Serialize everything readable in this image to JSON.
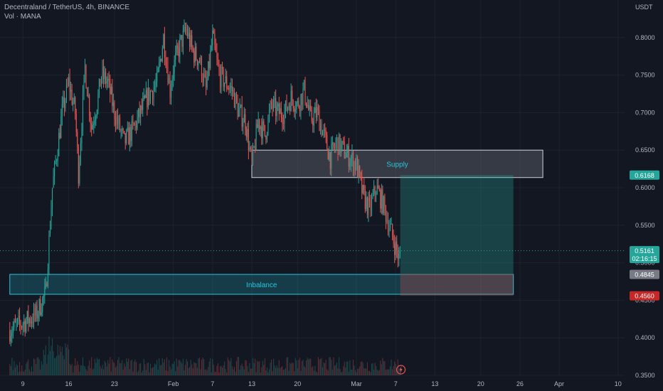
{
  "header": {
    "title": "Decentraland / TetherUS, 4h, BINANCE",
    "subtitle": "Vol · MANA"
  },
  "colors": {
    "background": "#131722",
    "up": "#26a69a",
    "down": "#ef5350",
    "grid": "#1e222d",
    "text": "#b2b5be",
    "zone_text": "#26c6da",
    "price_line": "#26a69a",
    "target_fill": "#1f5a56",
    "stop_fill": "#4a2124",
    "badge_green": "#26a69a",
    "badge_grey": "#787b86",
    "badge_red": "#c62828"
  },
  "chart_data": {
    "type": "candlestick",
    "symbol": "Decentraland / TetherUS",
    "interval": "4h",
    "exchange": "BINANCE",
    "currency": "USDT",
    "y_ticks": [
      0.35,
      0.4,
      0.45,
      0.5,
      0.55,
      0.6,
      0.65,
      0.7,
      0.75,
      0.8
    ],
    "y_tick_labels": [
      "0.3500",
      "0.4000",
      "0.4500",
      "0.5000",
      "0.5500",
      "0.6000",
      "0.6500",
      "0.7000",
      "0.7500",
      "0.8000"
    ],
    "x_tick_labels": [
      "9",
      "16",
      "23",
      "Feb",
      "7",
      "13",
      "20",
      "Mar",
      "7",
      "13",
      "20",
      "26",
      "Apr",
      "10"
    ],
    "x_tick_days": [
      9,
      16,
      23,
      32,
      38,
      44,
      51,
      60,
      66,
      72,
      79,
      85,
      91,
      100
    ],
    "ylim": [
      0.35,
      0.85
    ],
    "xlim_days": [
      5.5,
      101
    ],
    "price_path": [
      [
        7,
        0.41
      ],
      [
        9,
        0.42
      ],
      [
        11,
        0.43
      ],
      [
        12.5,
        0.46
      ],
      [
        13.5,
        0.6
      ],
      [
        15,
        0.7
      ],
      [
        16,
        0.74
      ],
      [
        17,
        0.7
      ],
      [
        17.5,
        0.62
      ],
      [
        18.5,
        0.76
      ],
      [
        19.5,
        0.68
      ],
      [
        20.5,
        0.72
      ],
      [
        21,
        0.75
      ],
      [
        22,
        0.74
      ],
      [
        23,
        0.7
      ],
      [
        24.5,
        0.66
      ],
      [
        26,
        0.68
      ],
      [
        27,
        0.7
      ],
      [
        28,
        0.72
      ],
      [
        29.5,
        0.74
      ],
      [
        30.5,
        0.8
      ],
      [
        31.5,
        0.73
      ],
      [
        32,
        0.76
      ],
      [
        33,
        0.79
      ],
      [
        34,
        0.81
      ],
      [
        35,
        0.78
      ],
      [
        36,
        0.77
      ],
      [
        37,
        0.73
      ],
      [
        38,
        0.8
      ],
      [
        39,
        0.75
      ],
      [
        40,
        0.74
      ],
      [
        41,
        0.73
      ],
      [
        42,
        0.7
      ],
      [
        43,
        0.69
      ],
      [
        44,
        0.63
      ],
      [
        45,
        0.69
      ],
      [
        46,
        0.67
      ],
      [
        47,
        0.71
      ],
      [
        48,
        0.7
      ],
      [
        49,
        0.7
      ],
      [
        50,
        0.72
      ],
      [
        51,
        0.71
      ],
      [
        52,
        0.73
      ],
      [
        53,
        0.69
      ],
      [
        54,
        0.7
      ],
      [
        55,
        0.67
      ],
      [
        56,
        0.64
      ],
      [
        57,
        0.66
      ],
      [
        58,
        0.65
      ],
      [
        59,
        0.64
      ],
      [
        60,
        0.63
      ],
      [
        61,
        0.59
      ],
      [
        62,
        0.57
      ],
      [
        63,
        0.6
      ],
      [
        64,
        0.58
      ],
      [
        65,
        0.55
      ],
      [
        66,
        0.52
      ],
      [
        66.7,
        0.5
      ]
    ],
    "current_price": 0.5161,
    "countdown": "02:16:15",
    "zones": [
      {
        "label": "Supply",
        "top": 0.65,
        "bottom": 0.6135,
        "from_day": 44,
        "to_day": 88.5
      },
      {
        "label": "Inbalance",
        "top": 0.4845,
        "bottom": 0.458,
        "from_day": 7,
        "to_day": 84
      }
    ],
    "position": {
      "entry": 0.4845,
      "target": 0.6168,
      "stop": 0.456,
      "from_day": 66.7,
      "to_day": 84
    },
    "axis_badges": [
      {
        "label": "0.6168",
        "value": 0.6168,
        "style": "green"
      },
      {
        "label": "0.5161",
        "value": 0.5161,
        "style": "green",
        "second_line": "02:16:15"
      },
      {
        "label": "0.4845",
        "value": 0.4845,
        "style": "grey"
      },
      {
        "label": "0.4560",
        "value": 0.456,
        "style": "red"
      }
    ]
  }
}
